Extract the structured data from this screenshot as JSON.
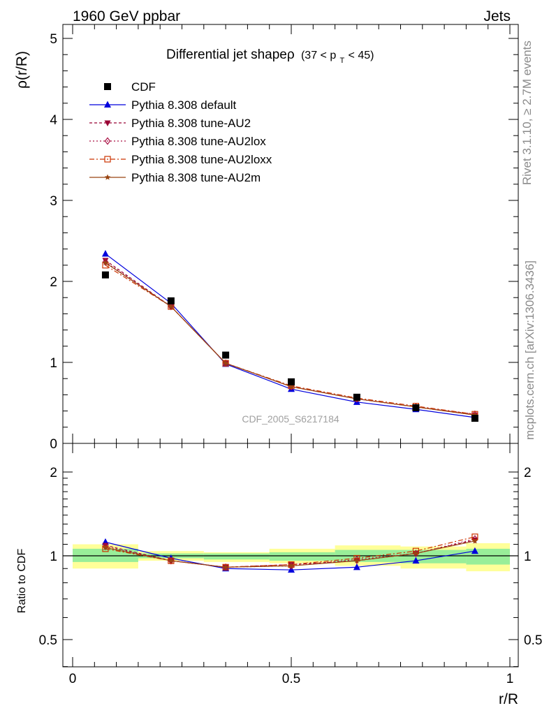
{
  "header": {
    "left": "1960 GeV ppbar",
    "right": "Jets"
  },
  "side_labels": {
    "rivet": "Rivet 3.1.10, ≥ 2.7M events",
    "mcplots": "mcplots.cern.ch [arXiv:1306.3436]"
  },
  "chart_data": {
    "type": "line",
    "title": "Differential jet shapeρ",
    "title_range": "(37 < p",
    "title_sub": "T",
    "title_range_end": " < 45)",
    "watermark": "CDF_2005_S6217184",
    "xlabel": "r/R",
    "ylabel": "ρ(r/R)",
    "ratio_ylabel": "Ratio to CDF",
    "xlim": [
      0,
      1
    ],
    "ylim": [
      0,
      5.2
    ],
    "ratio_ylim": [
      0.35,
      2.25
    ],
    "x_ticks": [
      "0",
      "0.5",
      "1"
    ],
    "y_ticks": [
      "0",
      "1",
      "2",
      "3",
      "4",
      "5"
    ],
    "ratio_ticks": [
      "0.5",
      "1",
      "2"
    ],
    "x": [
      0.075,
      0.225,
      0.35,
      0.5,
      0.65,
      0.785,
      0.92
    ],
    "bin_edges": [
      0.0,
      0.15,
      0.3,
      0.45,
      0.6,
      0.75,
      0.9,
      1.0
    ],
    "band_yellow": [
      [
        0.9,
        1.1
      ],
      [
        0.96,
        1.04
      ],
      [
        0.95,
        1.03
      ],
      [
        0.94,
        1.06
      ],
      [
        0.92,
        1.09
      ],
      [
        0.9,
        1.08
      ],
      [
        0.88,
        1.11
      ]
    ],
    "band_green": [
      [
        0.95,
        1.06
      ],
      [
        0.98,
        1.02
      ],
      [
        0.97,
        1.02
      ],
      [
        0.96,
        1.03
      ],
      [
        0.95,
        1.05
      ],
      [
        0.94,
        1.05
      ],
      [
        0.93,
        1.06
      ]
    ],
    "series": [
      {
        "name": "CDF",
        "color": "#000000",
        "marker": "square",
        "dash": "",
        "data": true,
        "values": [
          2.08,
          1.76,
          1.09,
          0.76,
          0.57,
          0.44,
          0.31
        ]
      },
      {
        "name": "Pythia 8.308 default",
        "color": "#0000dd",
        "marker": "triangle-up",
        "dash": "",
        "values": [
          2.34,
          1.73,
          0.98,
          0.67,
          0.51,
          0.42,
          0.32
        ],
        "ratio": [
          1.12,
          0.98,
          0.9,
          0.89,
          0.91,
          0.96,
          1.04
        ]
      },
      {
        "name": "Pythia 8.308 tune-AU2",
        "color": "#990033",
        "marker": "triangle-down",
        "dash": "4,3",
        "values": [
          2.26,
          1.69,
          0.99,
          0.7,
          0.55,
          0.45,
          0.35
        ],
        "ratio": [
          1.09,
          0.96,
          0.91,
          0.93,
          0.96,
          1.02,
          1.14
        ]
      },
      {
        "name": "Pythia 8.308 tune-AU2lox",
        "color": "#aa1144",
        "marker": "diamond-open",
        "dash": "2,3",
        "values": [
          2.24,
          1.69,
          0.99,
          0.7,
          0.55,
          0.45,
          0.36
        ],
        "ratio": [
          1.08,
          0.96,
          0.91,
          0.92,
          0.97,
          1.02,
          1.15
        ]
      },
      {
        "name": "Pythia 8.308 tune-AU2loxx",
        "color": "#cc3300",
        "marker": "square-open",
        "dash": "7,3,2,3",
        "values": [
          2.2,
          1.69,
          0.99,
          0.71,
          0.56,
          0.46,
          0.36
        ],
        "ratio": [
          1.06,
          0.96,
          0.91,
          0.93,
          0.98,
          1.04,
          1.17
        ]
      },
      {
        "name": "Pythia 8.308 tune-AU2m",
        "color": "#994411",
        "marker": "star",
        "dash": "",
        "values": [
          2.23,
          1.69,
          0.99,
          0.7,
          0.55,
          0.45,
          0.35
        ],
        "ratio": [
          1.07,
          0.96,
          0.91,
          0.92,
          0.96,
          1.02,
          1.13
        ]
      }
    ]
  }
}
